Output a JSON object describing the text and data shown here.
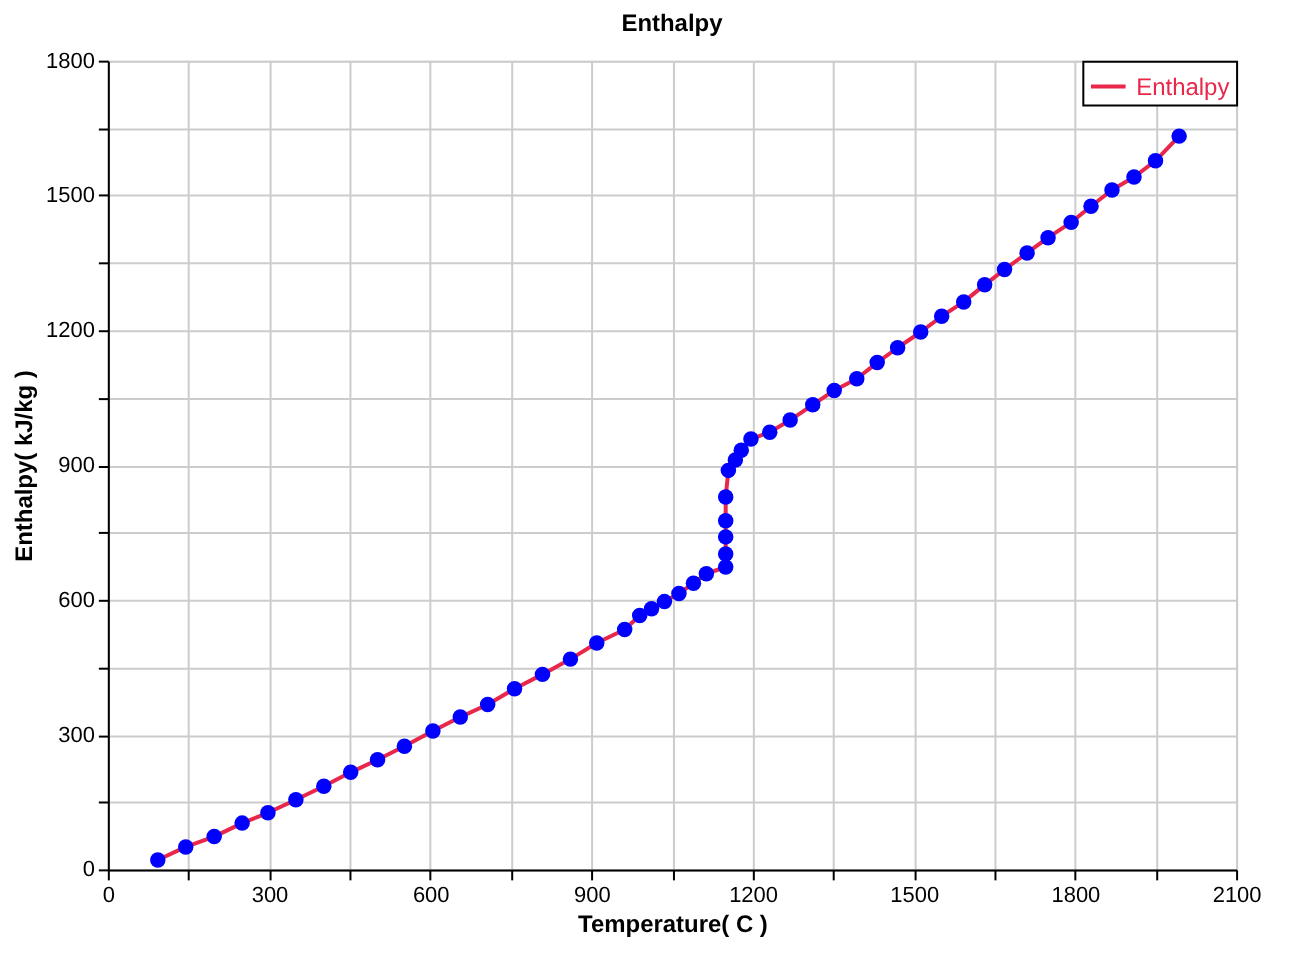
{
  "chart_data": {
    "type": "line",
    "title": "Enthalpy",
    "xlabel": "Temperature( C )",
    "ylabel": "Enthalpy( kJ/kg )",
    "xlim": [
      0,
      2100
    ],
    "ylim": [
      0,
      1800
    ],
    "xticks": [
      0,
      {
        "value": 150,
        "label": null
      },
      300,
      {
        "value": 450,
        "label": null
      },
      600,
      {
        "value": 750,
        "label": null
      },
      900,
      {
        "value": 1050,
        "label": null
      },
      1200,
      {
        "value": 1350,
        "label": null
      },
      1500,
      {
        "value": 1650,
        "label": null
      },
      1800,
      {
        "value": 1950,
        "label": null
      },
      2100
    ],
    "yticks": [
      0,
      {
        "value": 150,
        "label": null
      },
      300,
      {
        "value": 450,
        "label": null
      },
      600,
      {
        "value": 750,
        "label": null
      },
      900,
      {
        "value": 1050,
        "label": null
      },
      1200,
      {
        "value": 1350,
        "label": null
      },
      1500,
      {
        "value": 1650,
        "label": null
      },
      1800
    ],
    "grid": true,
    "legend": "top right",
    "marker": "circle",
    "line_style": "solid",
    "series": [
      {
        "name": "Enthalpy",
        "color": "#e8274a",
        "colors": [
          "#0000ff",
          "#0000ff",
          "#0000ff",
          "#0000ff",
          "#0000ff",
          "#0000ff",
          "#0000ff",
          "#0000ff",
          "#0000ff",
          "#0000ff",
          "#0000ff",
          "#0000ff",
          "#0000ff",
          "#0000ff",
          "#0000ff",
          "#0000ff",
          "#0000ff",
          "#0000ff",
          "#0000ff",
          "#0000ff",
          "#0000ff",
          "#0000ff",
          "#0000ff",
          "#0000ff",
          "#0000ff",
          "#0000ff",
          "#0000ff",
          "#0000ff",
          "#0000ff",
          "#0000ff",
          "#0000ff",
          "#0000ff",
          "#0000ff",
          "#0000ff",
          "#0000ff",
          "#0000ff",
          "#0000ff",
          "#0000ff",
          "#0000ff",
          "#0000ff",
          "#0000ff",
          "#0000ff",
          "#0000ff",
          "#0000ff",
          "#0000ff",
          "#0000ff",
          "#0000ff",
          "#0000ff",
          "#0000ff",
          "#0000ff",
          "#0000ff",
          "#0000ff",
          "#0000ff"
        ],
        "x": [
          93,
          145,
          198,
          250,
          298,
          350,
          402,
          452,
          502,
          552,
          605,
          656,
          707,
          757,
          809,
          861,
          910,
          962,
          990,
          1012,
          1036,
          1063,
          1090,
          1114,
          1150,
          1150,
          1150,
          1150,
          1150,
          1155,
          1168,
          1179,
          1197,
          1232,
          1270,
          1312,
          1352,
          1394,
          1432,
          1470,
          1513,
          1552,
          1593,
          1632,
          1669,
          1711,
          1750,
          1793,
          1830,
          1869,
          1910,
          1950,
          1994
        ],
        "values": [
          21,
          50,
          73,
          103,
          126,
          155,
          185,
          216,
          244,
          274,
          308,
          339,
          367,
          402,
          434,
          468,
          504,
          534,
          565,
          580,
          596,
          614,
          637,
          658,
          673,
          702,
          740,
          776,
          829,
          888,
          911,
          933,
          958,
          973,
          1000,
          1034,
          1066,
          1092,
          1128,
          1161,
          1196,
          1231,
          1263,
          1301,
          1335,
          1372,
          1406,
          1440,
          1476,
          1512,
          1541,
          1577,
          1632
        ]
      }
    ]
  }
}
